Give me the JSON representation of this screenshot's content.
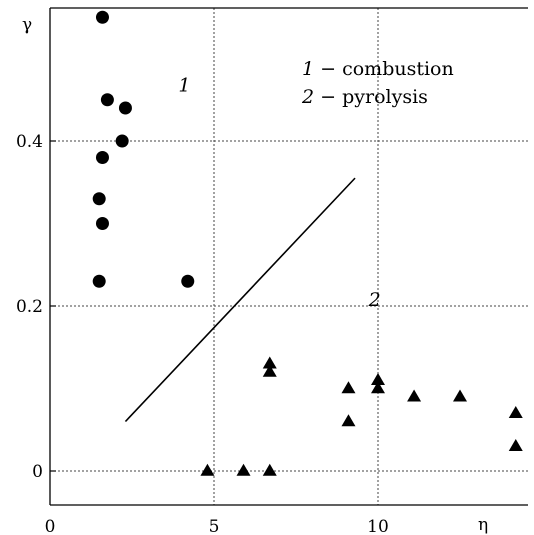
{
  "chart_data": {
    "type": "scatter",
    "xlabel": "η",
    "ylabel": "γ",
    "xlim": [
      0,
      14.4
    ],
    "ylim": [
      -0.03,
      0.55
    ],
    "grid": true,
    "x_ticks": [
      {
        "value": 0,
        "label": "0"
      },
      {
        "value": 5,
        "label": "5"
      },
      {
        "value": 10,
        "label": "10"
      }
    ],
    "y_ticks": [
      {
        "value": 0,
        "label": "0"
      },
      {
        "value": 0.2,
        "label": "0.2"
      },
      {
        "value": 0.4,
        "label": "0.4"
      }
    ],
    "legend": {
      "placement": "top-right",
      "entries": [
        {
          "number": "1",
          "text": "− combustion"
        },
        {
          "number": "2",
          "text": "− pyrolysis"
        }
      ]
    },
    "region_labels": [
      {
        "text": "1",
        "x": 4.1,
        "y": 0.46
      },
      {
        "text": "2",
        "x": 9.9,
        "y": 0.2
      }
    ],
    "boundary_line": {
      "x": [
        2.3,
        9.3
      ],
      "y": 0.06,
      "y_end": 0.355
    },
    "series": [
      {
        "marker": "circle",
        "x": [
          1.6,
          1.75,
          2.3,
          2.2,
          1.6,
          1.5,
          1.6,
          1.5,
          4.2
        ],
        "y": [
          0.55,
          0.45,
          0.44,
          0.4,
          0.38,
          0.33,
          0.3,
          0.23,
          0.23
        ]
      },
      {
        "marker": "triangle",
        "x": [
          4.8,
          5.9,
          6.7,
          6.7,
          6.7,
          9.1,
          9.1,
          10.0,
          10.0,
          11.1,
          12.5,
          14.2,
          14.2
        ],
        "y": [
          0.0,
          0.0,
          0.0,
          0.13,
          0.12,
          0.1,
          0.06,
          0.11,
          0.1,
          0.09,
          0.09,
          0.07,
          0.03
        ]
      }
    ]
  }
}
